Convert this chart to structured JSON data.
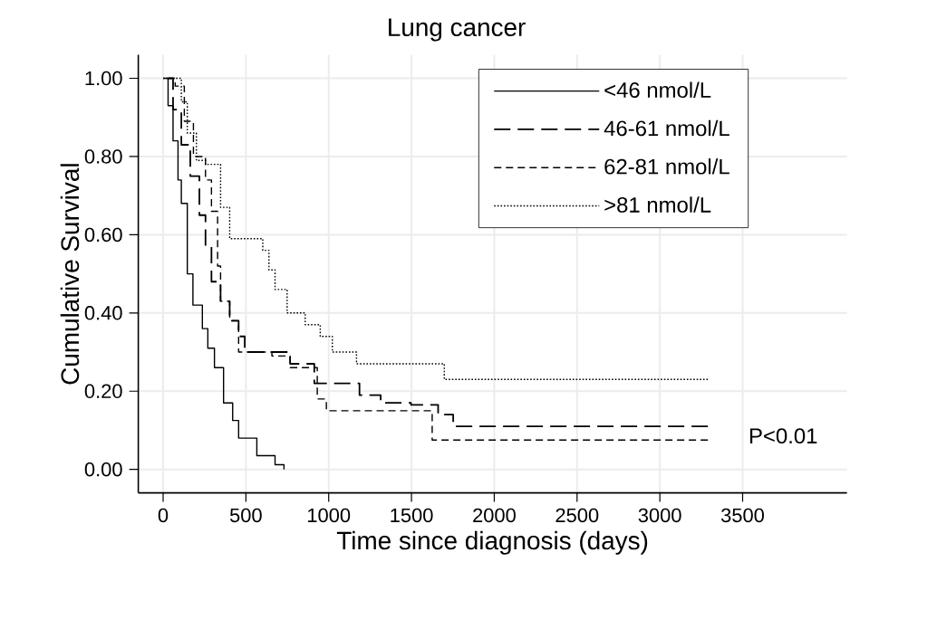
{
  "chart_data": {
    "type": "step",
    "title": "Lung cancer",
    "xlabel": "Time since diagnosis (days)",
    "ylabel": "Cumulative Survival",
    "xlim": [
      -150,
      4130
    ],
    "ylim": [
      -0.06,
      1.06
    ],
    "xticks": [
      0,
      500,
      1000,
      1500,
      2000,
      2500,
      3000,
      3500
    ],
    "yticks": [
      {
        "value": 0,
        "label": "0.00"
      },
      {
        "value": 0.2,
        "label": "0.20"
      },
      {
        "value": 0.4,
        "label": "0.40"
      },
      {
        "value": 0.6,
        "label": "0.60"
      },
      {
        "value": 0.8,
        "label": "0.80"
      },
      {
        "value": 1,
        "label": "1.00"
      }
    ],
    "grid": true,
    "legend": "top right",
    "annotations": [
      "P<0.01"
    ],
    "series": [
      {
        "name": "<46 nmol/L",
        "color": "#000000",
        "line_style": "solid",
        "x": [
          0,
          30,
          60,
          90,
          110,
          146,
          180,
          237,
          270,
          310,
          365,
          420,
          456,
          566,
          676,
          730
        ],
        "values": [
          1.0,
          0.93,
          0.84,
          0.74,
          0.68,
          0.5,
          0.42,
          0.36,
          0.31,
          0.26,
          0.17,
          0.125,
          0.08,
          0.035,
          0.012,
          0.0
        ]
      },
      {
        "name": "46-61 nmol/L",
        "color": "#000000",
        "line_style": "dashed",
        "x": [
          0,
          60,
          110,
          164,
          219,
          256,
          292,
          347,
          402,
          456,
          493,
          676,
          767,
          913,
          1058,
          1186,
          1314,
          1497,
          1661,
          1752,
          3290
        ],
        "values": [
          1.0,
          0.92,
          0.83,
          0.75,
          0.65,
          0.57,
          0.48,
          0.43,
          0.38,
          0.34,
          0.3,
          0.3,
          0.27,
          0.22,
          0.22,
          0.19,
          0.17,
          0.165,
          0.14,
          0.11,
          0.11
        ]
      },
      {
        "name": "62-81 nmol/L",
        "color": "#000000",
        "line_style": "dashed",
        "x": [
          0,
          73,
          128,
          183,
          256,
          292,
          329,
          347,
          402,
          456,
          657,
          767,
          931,
          986,
          1607,
          1625,
          3290
        ],
        "values": [
          1.0,
          0.98,
          0.89,
          0.8,
          0.74,
          0.66,
          0.52,
          0.43,
          0.38,
          0.3,
          0.29,
          0.26,
          0.18,
          0.15,
          0.15,
          0.075,
          0.075
        ]
      },
      {
        "name": ">81 nmol/L",
        "color": "#000000",
        "line_style": "dotted",
        "x": [
          0,
          91,
          110,
          146,
          201,
          256,
          347,
          402,
          511,
          602,
          639,
          676,
          749,
          858,
          949,
          1022,
          1168,
          1698,
          3290
        ],
        "values": [
          1.0,
          1.0,
          0.94,
          0.86,
          0.79,
          0.78,
          0.67,
          0.59,
          0.59,
          0.56,
          0.51,
          0.46,
          0.4,
          0.37,
          0.34,
          0.3,
          0.27,
          0.23,
          0.23
        ]
      }
    ]
  }
}
